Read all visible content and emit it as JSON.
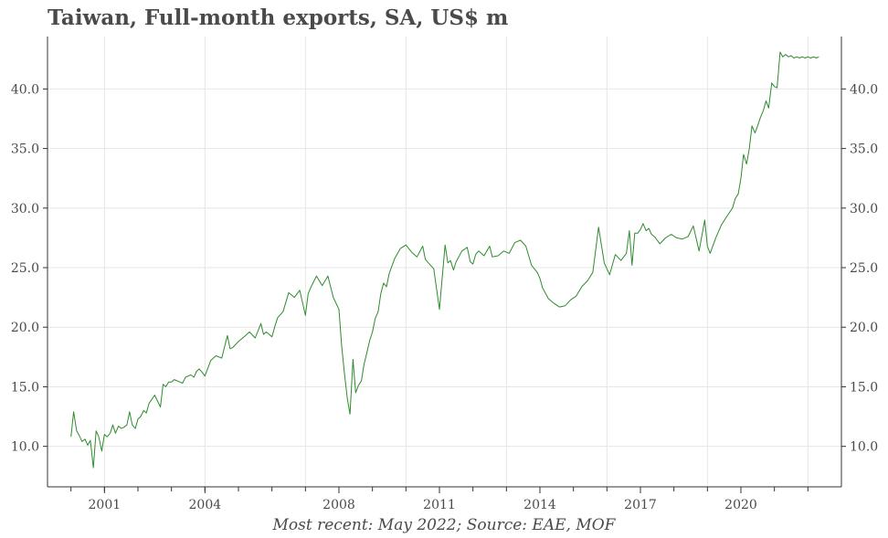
{
  "title": "Taiwan, Full-month exports, SA, US$ m",
  "footer": "Most recent: May 2022; Source: EAE, MOF",
  "colors": {
    "line": "#2e8b2e",
    "grid": "#e6e6e6",
    "axis": "#333333",
    "text": "#4a4a4a"
  },
  "chart_data": {
    "type": "line",
    "title": "Taiwan, Full-month exports, SA, US$ m",
    "xlabel": "",
    "ylabel": "",
    "xlim": [
      1999.3,
      2023.0
    ],
    "ylim": [
      6.6,
      44.4
    ],
    "x_ticks": [
      2001,
      2004,
      2008,
      2011,
      2014,
      2017,
      2020
    ],
    "x_tick_labels": [
      "2001",
      "2004",
      "2008",
      "2011",
      "2014",
      "2017",
      "2020"
    ],
    "x_grid": [
      2001,
      2004,
      2007,
      2010,
      2013,
      2016,
      2019,
      2022
    ],
    "x_minor_ticks": [
      2000,
      2001,
      2002,
      2003,
      2004,
      2005,
      2006,
      2007,
      2008,
      2009,
      2010,
      2011,
      2012,
      2013,
      2014,
      2015,
      2016,
      2017,
      2018,
      2019,
      2020,
      2021,
      2022
    ],
    "y_ticks": [
      10.0,
      15.0,
      20.0,
      25.0,
      30.0,
      35.0,
      40.0
    ],
    "y_tick_labels": [
      "10.0",
      "15.0",
      "20.0",
      "25.0",
      "30.0",
      "35.0",
      "40.0"
    ],
    "grid": true,
    "legend": "none",
    "series": [
      {
        "x": [
          2000.0,
          2000.08,
          2000.17,
          2000.25,
          2000.33,
          2000.42,
          2000.5,
          2000.58,
          2000.67,
          2000.75,
          2000.83,
          2000.92,
          2001.0,
          2001.08,
          2001.17,
          2001.25,
          2001.33,
          2001.42,
          2001.5,
          2001.58,
          2001.67,
          2001.75,
          2001.83,
          2001.92,
          2002.0,
          2002.08,
          2002.17,
          2002.25,
          2002.33,
          2002.5,
          2002.67,
          2002.75,
          2002.83,
          2002.92,
          2003.0,
          2003.08,
          2003.17,
          2003.25,
          2003.33,
          2003.42,
          2003.5,
          2003.58,
          2003.67,
          2003.75,
          2003.83,
          2003.92,
          2004.0,
          2004.17,
          2004.33,
          2004.5,
          2004.67,
          2004.75,
          2004.83,
          2005.0,
          2005.17,
          2005.33,
          2005.5,
          2005.67,
          2005.75,
          2005.83,
          2006.0,
          2006.08,
          2006.17,
          2006.33,
          2006.5,
          2006.67,
          2006.83,
          2007.0,
          2007.08,
          2007.17,
          2007.33,
          2007.5,
          2007.67,
          2007.83,
          2008.0,
          2008.08,
          2008.17,
          2008.25,
          2008.33,
          2008.42,
          2008.5,
          2008.58,
          2008.67,
          2008.75,
          2008.83,
          2008.92,
          2009.0,
          2009.08,
          2009.17,
          2009.25,
          2009.33,
          2009.42,
          2009.5,
          2009.67,
          2009.83,
          2010.0,
          2010.17,
          2010.33,
          2010.5,
          2010.58,
          2010.67,
          2010.83,
          2011.0,
          2011.17,
          2011.25,
          2011.33,
          2011.42,
          2011.5,
          2011.67,
          2011.83,
          2011.92,
          2012.0,
          2012.08,
          2012.17,
          2012.33,
          2012.5,
          2012.58,
          2012.75,
          2012.92,
          2013.08,
          2013.25,
          2013.42,
          2013.58,
          2013.75,
          2013.92,
          2014.0,
          2014.08,
          2014.25,
          2014.42,
          2014.58,
          2014.75,
          2014.92,
          2015.08,
          2015.25,
          2015.42,
          2015.58,
          2015.75,
          2015.92,
          2016.08,
          2016.25,
          2016.42,
          2016.58,
          2016.67,
          2016.75,
          2016.83,
          2016.92,
          2017.0,
          2017.08,
          2017.17,
          2017.25,
          2017.33,
          2017.42,
          2017.58,
          2017.75,
          2017.92,
          2018.08,
          2018.25,
          2018.42,
          2018.58,
          2018.75,
          2018.92,
          2019.0,
          2019.08,
          2019.25,
          2019.42,
          2019.58,
          2019.75,
          2019.83,
          2019.92,
          2020.0,
          2020.08,
          2020.17,
          2020.25,
          2020.33,
          2020.42,
          2020.5,
          2020.58,
          2020.67,
          2020.75,
          2020.83,
          2020.92,
          2021.0,
          2021.08,
          2021.17,
          2021.25,
          2021.33,
          2021.42,
          2021.5,
          2021.58,
          2021.67,
          2021.75,
          2021.83,
          2021.92,
          2022.0,
          2022.08,
          2022.17,
          2022.25,
          2022.33
        ],
        "values": [
          10.8,
          12.9,
          11.3,
          10.9,
          10.4,
          10.6,
          10.1,
          10.5,
          8.2,
          11.3,
          10.8,
          9.6,
          11.0,
          10.8,
          11.1,
          11.8,
          11.1,
          11.7,
          11.5,
          11.6,
          11.8,
          12.9,
          11.8,
          11.5,
          12.3,
          12.5,
          13.0,
          12.8,
          13.6,
          14.3,
          13.3,
          15.2,
          15.0,
          15.4,
          15.4,
          15.6,
          15.5,
          15.4,
          15.3,
          15.8,
          15.9,
          16.0,
          15.8,
          16.3,
          16.5,
          16.2,
          15.9,
          17.2,
          17.6,
          17.4,
          19.3,
          18.2,
          18.3,
          18.8,
          19.2,
          19.6,
          19.1,
          20.3,
          19.4,
          19.6,
          19.2,
          20.0,
          20.8,
          21.3,
          22.9,
          22.5,
          23.1,
          21.0,
          22.8,
          23.4,
          24.3,
          23.5,
          24.3,
          22.5,
          21.5,
          18.5,
          16.0,
          14.0,
          12.7,
          17.3,
          14.5,
          15.1,
          15.5,
          16.9,
          17.8,
          18.9,
          19.6,
          20.7,
          21.3,
          22.8,
          23.7,
          23.4,
          24.5,
          25.8,
          26.6,
          26.9,
          26.3,
          25.9,
          26.8,
          25.7,
          25.4,
          24.9,
          21.5,
          26.9,
          25.4,
          25.6,
          24.8,
          25.5,
          26.4,
          26.7,
          25.5,
          25.3,
          26.1,
          26.4,
          26.0,
          26.8,
          25.9,
          26.0,
          26.4,
          26.2,
          27.1,
          27.3,
          26.8,
          25.2,
          24.6,
          24.1,
          23.3,
          22.4,
          22.0,
          21.7,
          21.8,
          22.3,
          22.6,
          23.4,
          23.9,
          24.6,
          28.4,
          25.4,
          24.4,
          26.1,
          25.6,
          26.2,
          28.1,
          25.2,
          27.9,
          27.9,
          28.2,
          28.7,
          28.1,
          28.3,
          27.8,
          27.6,
          27.0,
          27.5,
          27.8,
          27.5,
          27.4,
          27.6,
          28.5,
          26.4,
          29.0,
          26.8,
          26.2,
          27.5,
          28.6,
          29.3,
          30.0,
          30.8,
          31.2,
          32.5,
          34.5,
          33.7,
          35.0,
          36.9,
          36.3,
          36.9,
          37.6,
          38.2,
          39.0,
          38.4,
          40.5,
          40.2,
          40.1,
          43.1,
          42.7,
          42.9,
          42.7,
          42.8,
          42.6,
          42.7,
          42.6,
          42.7,
          42.6,
          42.7,
          42.6,
          42.7,
          42.6,
          42.7
        ]
      }
    ]
  }
}
